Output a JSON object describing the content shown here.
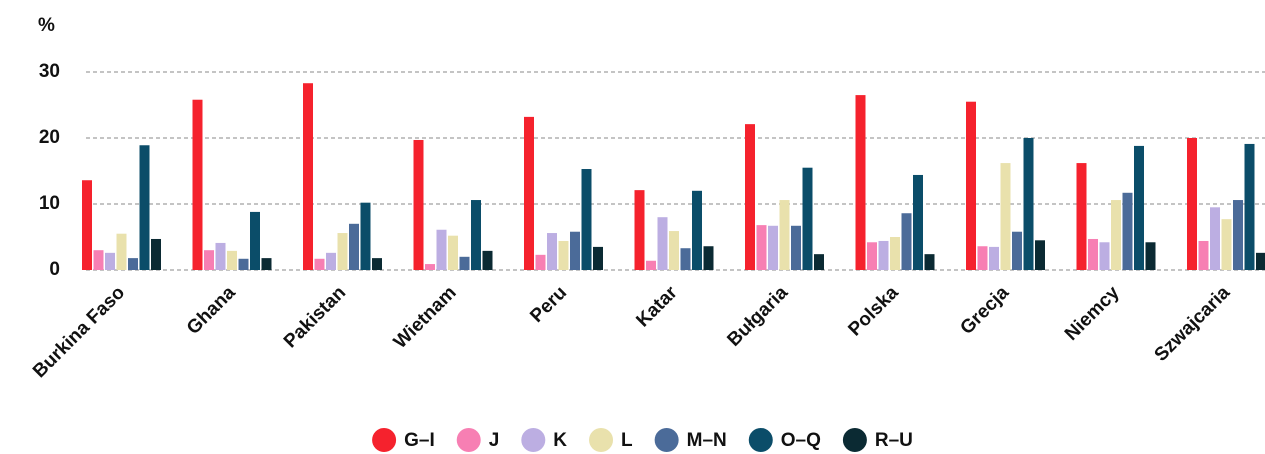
{
  "chart_data": {
    "type": "bar",
    "ylabel": "%",
    "categories": [
      "Burkina Faso",
      "Ghana",
      "Pakistan",
      "Wietnam",
      "Peru",
      "Katar",
      "Bułgaria",
      "Polska",
      "Grecja",
      "Niemcy",
      "Szwajcaria"
    ],
    "series": [
      {
        "name": "G–I",
        "color": "#f5222d",
        "values": [
          13.6,
          25.8,
          28.3,
          19.7,
          23.2,
          12.1,
          22.1,
          26.5,
          25.5,
          16.2,
          20.0
        ]
      },
      {
        "name": "J",
        "color": "#f77fb3",
        "values": [
          3.0,
          3.0,
          1.7,
          0.9,
          2.3,
          1.4,
          6.8,
          4.2,
          3.6,
          4.7,
          4.4
        ]
      },
      {
        "name": "K",
        "color": "#bcaee2",
        "values": [
          2.6,
          4.1,
          2.6,
          6.1,
          5.6,
          8.0,
          6.7,
          4.4,
          3.5,
          4.2,
          9.5
        ]
      },
      {
        "name": "L",
        "color": "#e9e1ac",
        "values": [
          5.5,
          2.9,
          5.6,
          5.2,
          4.4,
          5.9,
          10.6,
          5.0,
          16.2,
          10.6,
          7.7
        ]
      },
      {
        "name": "M–N",
        "color": "#4b6b99",
        "values": [
          1.8,
          1.7,
          7.0,
          2.0,
          5.8,
          3.3,
          6.7,
          8.6,
          5.8,
          11.7,
          10.6
        ]
      },
      {
        "name": "O–Q",
        "color": "#0b4d69",
        "values": [
          18.9,
          8.8,
          10.2,
          10.6,
          15.3,
          12.0,
          15.5,
          14.4,
          20.0,
          18.8,
          19.1
        ]
      },
      {
        "name": "R–U",
        "color": "#0b2a33",
        "values": [
          4.7,
          1.8,
          1.8,
          2.9,
          3.5,
          3.6,
          2.4,
          2.4,
          4.5,
          4.2,
          2.6
        ]
      }
    ],
    "ylim": [
      0,
      30
    ],
    "yticks": [
      0,
      10,
      20,
      30
    ],
    "grid": true
  }
}
